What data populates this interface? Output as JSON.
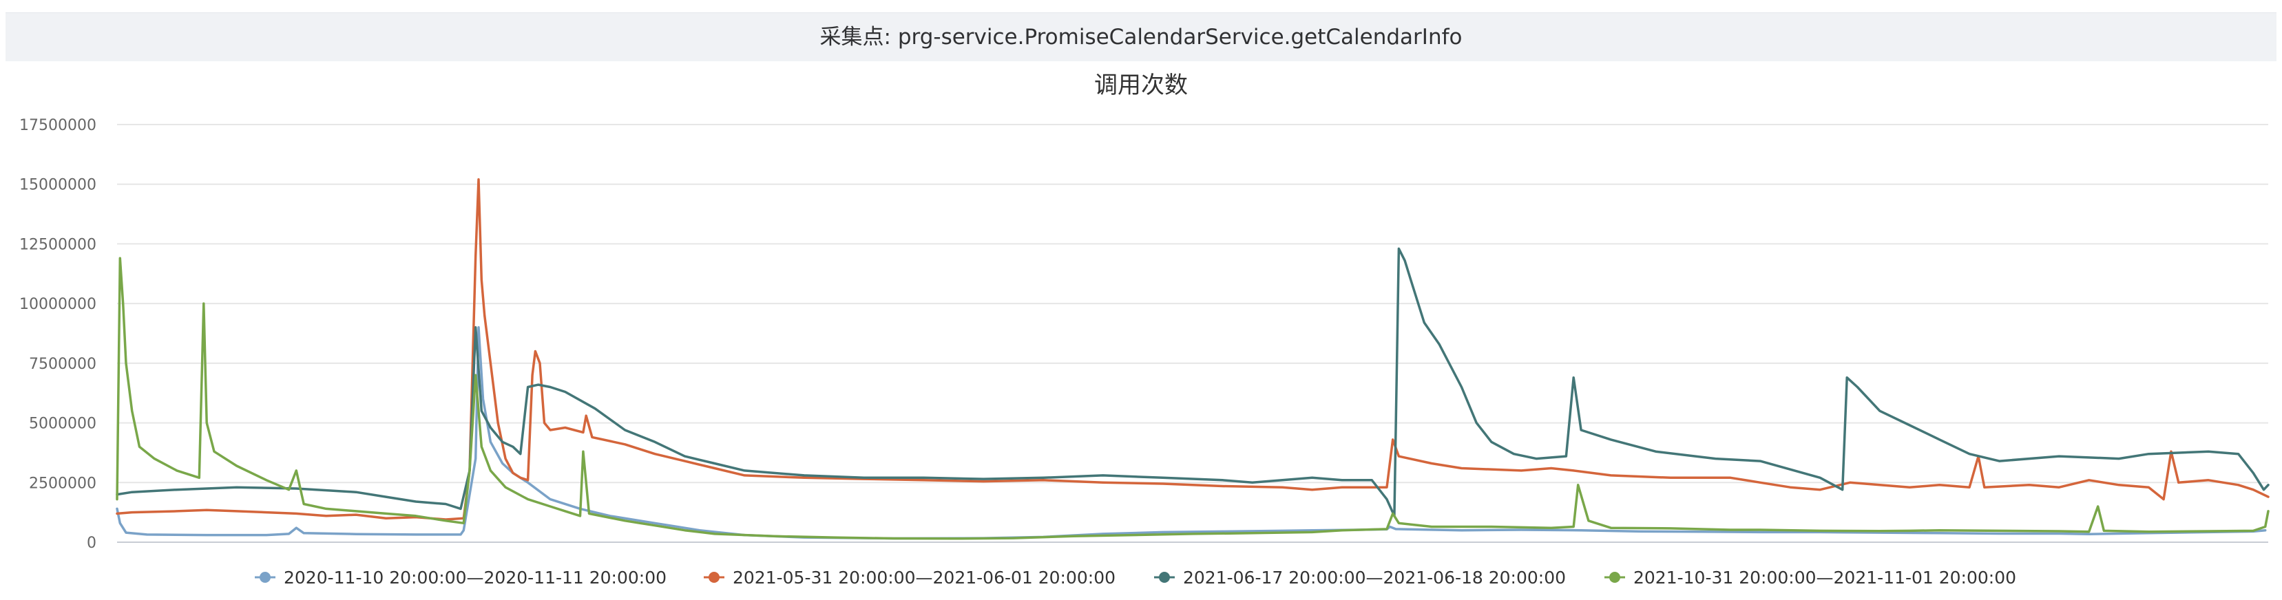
{
  "header": {
    "label": "采集点:",
    "value": "prg-service.PromiseCalendarService.getCalendarInfo"
  },
  "chart_data": {
    "type": "line",
    "title": "调用次数",
    "xlabel": "",
    "ylabel": "",
    "ylim": [
      0,
      17500000
    ],
    "yticks": [
      0,
      2500000,
      5000000,
      7500000,
      10000000,
      12500000,
      15000000,
      17500000
    ],
    "ytick_labels": [
      "0",
      "2500000",
      "5000000",
      "7500000",
      "10000000",
      "12500000",
      "15000000",
      "17500000"
    ],
    "grid": true,
    "legend_position": "bottom",
    "x_domain": [
      0,
      1440
    ],
    "series": [
      {
        "name": "2020-11-10 20:00:00—2020-11-11 20:00:00",
        "color": "#7aa2c8",
        "points": [
          [
            0,
            1400000
          ],
          [
            2,
            800000
          ],
          [
            6,
            400000
          ],
          [
            20,
            320000
          ],
          [
            60,
            300000
          ],
          [
            100,
            300000
          ],
          [
            115,
            350000
          ],
          [
            120,
            600000
          ],
          [
            125,
            380000
          ],
          [
            160,
            340000
          ],
          [
            200,
            320000
          ],
          [
            230,
            320000
          ],
          [
            232,
            500000
          ],
          [
            240,
            3500000
          ],
          [
            242,
            9000000
          ],
          [
            245,
            6000000
          ],
          [
            250,
            4200000
          ],
          [
            258,
            3300000
          ],
          [
            265,
            2900000
          ],
          [
            275,
            2500000
          ],
          [
            290,
            1800000
          ],
          [
            310,
            1400000
          ],
          [
            330,
            1100000
          ],
          [
            360,
            800000
          ],
          [
            390,
            500000
          ],
          [
            420,
            300000
          ],
          [
            460,
            200000
          ],
          [
            520,
            160000
          ],
          [
            580,
            170000
          ],
          [
            620,
            220000
          ],
          [
            660,
            350000
          ],
          [
            700,
            420000
          ],
          [
            740,
            450000
          ],
          [
            780,
            480000
          ],
          [
            800,
            500000
          ],
          [
            830,
            520000
          ],
          [
            850,
            540000
          ],
          [
            852,
            650000
          ],
          [
            856,
            550000
          ],
          [
            900,
            500000
          ],
          [
            940,
            520000
          ],
          [
            980,
            500000
          ],
          [
            1020,
            450000
          ],
          [
            1060,
            440000
          ],
          [
            1100,
            420000
          ],
          [
            1140,
            420000
          ],
          [
            1180,
            400000
          ],
          [
            1220,
            380000
          ],
          [
            1260,
            360000
          ],
          [
            1300,
            360000
          ],
          [
            1320,
            340000
          ],
          [
            1360,
            380000
          ],
          [
            1400,
            420000
          ],
          [
            1430,
            450000
          ],
          [
            1438,
            500000
          ]
        ]
      },
      {
        "name": "2021-05-31 20:00:00—2021-06-01 20:00:00",
        "color": "#d4653b",
        "points": [
          [
            0,
            1200000
          ],
          [
            10,
            1250000
          ],
          [
            40,
            1300000
          ],
          [
            60,
            1350000
          ],
          [
            80,
            1300000
          ],
          [
            100,
            1250000
          ],
          [
            120,
            1200000
          ],
          [
            140,
            1100000
          ],
          [
            160,
            1150000
          ],
          [
            180,
            1000000
          ],
          [
            200,
            1050000
          ],
          [
            220,
            950000
          ],
          [
            232,
            1000000
          ],
          [
            236,
            3000000
          ],
          [
            240,
            12000000
          ],
          [
            242,
            15200000
          ],
          [
            244,
            11000000
          ],
          [
            246,
            9500000
          ],
          [
            250,
            7500000
          ],
          [
            255,
            5000000
          ],
          [
            260,
            3500000
          ],
          [
            265,
            2900000
          ],
          [
            270,
            2700000
          ],
          [
            275,
            2600000
          ],
          [
            278,
            7000000
          ],
          [
            280,
            8000000
          ],
          [
            283,
            7500000
          ],
          [
            286,
            5000000
          ],
          [
            290,
            4700000
          ],
          [
            300,
            4800000
          ],
          [
            312,
            4600000
          ],
          [
            314,
            5300000
          ],
          [
            318,
            4400000
          ],
          [
            340,
            4100000
          ],
          [
            360,
            3700000
          ],
          [
            380,
            3400000
          ],
          [
            400,
            3100000
          ],
          [
            420,
            2800000
          ],
          [
            460,
            2700000
          ],
          [
            500,
            2650000
          ],
          [
            540,
            2600000
          ],
          [
            580,
            2550000
          ],
          [
            620,
            2600000
          ],
          [
            660,
            2500000
          ],
          [
            700,
            2450000
          ],
          [
            740,
            2350000
          ],
          [
            780,
            2300000
          ],
          [
            800,
            2200000
          ],
          [
            820,
            2300000
          ],
          [
            850,
            2300000
          ],
          [
            854,
            4300000
          ],
          [
            858,
            3600000
          ],
          [
            880,
            3300000
          ],
          [
            900,
            3100000
          ],
          [
            940,
            3000000
          ],
          [
            960,
            3100000
          ],
          [
            975,
            3000000
          ],
          [
            1000,
            2800000
          ],
          [
            1040,
            2700000
          ],
          [
            1080,
            2700000
          ],
          [
            1100,
            2500000
          ],
          [
            1120,
            2300000
          ],
          [
            1140,
            2200000
          ],
          [
            1160,
            2500000
          ],
          [
            1200,
            2300000
          ],
          [
            1220,
            2400000
          ],
          [
            1240,
            2300000
          ],
          [
            1246,
            3600000
          ],
          [
            1250,
            2300000
          ],
          [
            1280,
            2400000
          ],
          [
            1300,
            2300000
          ],
          [
            1320,
            2600000
          ],
          [
            1340,
            2400000
          ],
          [
            1360,
            2300000
          ],
          [
            1370,
            1800000
          ],
          [
            1375,
            3800000
          ],
          [
            1380,
            2500000
          ],
          [
            1400,
            2600000
          ],
          [
            1420,
            2400000
          ],
          [
            1430,
            2200000
          ],
          [
            1440,
            1900000
          ]
        ]
      },
      {
        "name": "2021-06-17 20:00:00—2021-06-18 20:00:00",
        "color": "#437677",
        "points": [
          [
            0,
            2000000
          ],
          [
            10,
            2100000
          ],
          [
            40,
            2200000
          ],
          [
            80,
            2300000
          ],
          [
            120,
            2250000
          ],
          [
            160,
            2100000
          ],
          [
            180,
            1900000
          ],
          [
            200,
            1700000
          ],
          [
            220,
            1600000
          ],
          [
            230,
            1400000
          ],
          [
            236,
            3000000
          ],
          [
            240,
            9000000
          ],
          [
            244,
            5500000
          ],
          [
            250,
            4800000
          ],
          [
            258,
            4200000
          ],
          [
            265,
            4000000
          ],
          [
            270,
            3700000
          ],
          [
            275,
            6500000
          ],
          [
            282,
            6600000
          ],
          [
            290,
            6500000
          ],
          [
            300,
            6300000
          ],
          [
            320,
            5600000
          ],
          [
            340,
            4700000
          ],
          [
            360,
            4200000
          ],
          [
            380,
            3600000
          ],
          [
            400,
            3300000
          ],
          [
            420,
            3000000
          ],
          [
            460,
            2800000
          ],
          [
            500,
            2700000
          ],
          [
            540,
            2700000
          ],
          [
            580,
            2650000
          ],
          [
            620,
            2700000
          ],
          [
            660,
            2800000
          ],
          [
            700,
            2700000
          ],
          [
            740,
            2600000
          ],
          [
            760,
            2500000
          ],
          [
            780,
            2600000
          ],
          [
            800,
            2700000
          ],
          [
            820,
            2600000
          ],
          [
            840,
            2600000
          ],
          [
            850,
            1800000
          ],
          [
            855,
            1100000
          ],
          [
            858,
            12300000
          ],
          [
            862,
            11800000
          ],
          [
            866,
            11000000
          ],
          [
            875,
            9200000
          ],
          [
            885,
            8300000
          ],
          [
            900,
            6500000
          ],
          [
            910,
            5000000
          ],
          [
            920,
            4200000
          ],
          [
            935,
            3700000
          ],
          [
            950,
            3500000
          ],
          [
            970,
            3600000
          ],
          [
            975,
            6900000
          ],
          [
            980,
            4700000
          ],
          [
            1000,
            4300000
          ],
          [
            1030,
            3800000
          ],
          [
            1070,
            3500000
          ],
          [
            1100,
            3400000
          ],
          [
            1140,
            2700000
          ],
          [
            1155,
            2200000
          ],
          [
            1158,
            6900000
          ],
          [
            1165,
            6500000
          ],
          [
            1180,
            5500000
          ],
          [
            1200,
            4900000
          ],
          [
            1220,
            4300000
          ],
          [
            1240,
            3700000
          ],
          [
            1260,
            3400000
          ],
          [
            1300,
            3600000
          ],
          [
            1340,
            3500000
          ],
          [
            1360,
            3700000
          ],
          [
            1400,
            3800000
          ],
          [
            1420,
            3700000
          ],
          [
            1430,
            2900000
          ],
          [
            1437,
            2200000
          ],
          [
            1440,
            2400000
          ]
        ]
      },
      {
        "name": "2021-10-31 20:00:00—2021-11-01 20:00:00",
        "color": "#79a749",
        "points": [
          [
            0,
            1800000
          ],
          [
            2,
            11900000
          ],
          [
            4,
            10000000
          ],
          [
            6,
            7500000
          ],
          [
            10,
            5500000
          ],
          [
            15,
            4000000
          ],
          [
            25,
            3500000
          ],
          [
            40,
            3000000
          ],
          [
            55,
            2700000
          ],
          [
            58,
            10000000
          ],
          [
            60,
            5000000
          ],
          [
            65,
            3800000
          ],
          [
            80,
            3200000
          ],
          [
            100,
            2600000
          ],
          [
            115,
            2200000
          ],
          [
            120,
            3000000
          ],
          [
            125,
            1600000
          ],
          [
            140,
            1400000
          ],
          [
            160,
            1300000
          ],
          [
            180,
            1200000
          ],
          [
            200,
            1100000
          ],
          [
            220,
            900000
          ],
          [
            232,
            800000
          ],
          [
            236,
            3000000
          ],
          [
            240,
            7000000
          ],
          [
            244,
            4000000
          ],
          [
            250,
            3000000
          ],
          [
            260,
            2300000
          ],
          [
            275,
            1800000
          ],
          [
            290,
            1500000
          ],
          [
            300,
            1300000
          ],
          [
            310,
            1100000
          ],
          [
            312,
            3800000
          ],
          [
            316,
            1200000
          ],
          [
            340,
            900000
          ],
          [
            360,
            700000
          ],
          [
            380,
            500000
          ],
          [
            400,
            350000
          ],
          [
            440,
            250000
          ],
          [
            480,
            200000
          ],
          [
            520,
            160000
          ],
          [
            560,
            150000
          ],
          [
            600,
            170000
          ],
          [
            640,
            250000
          ],
          [
            680,
            300000
          ],
          [
            720,
            350000
          ],
          [
            760,
            380000
          ],
          [
            800,
            420000
          ],
          [
            820,
            500000
          ],
          [
            850,
            550000
          ],
          [
            854,
            1200000
          ],
          [
            858,
            800000
          ],
          [
            880,
            650000
          ],
          [
            920,
            650000
          ],
          [
            960,
            600000
          ],
          [
            975,
            650000
          ],
          [
            978,
            2400000
          ],
          [
            985,
            900000
          ],
          [
            1000,
            600000
          ],
          [
            1040,
            580000
          ],
          [
            1080,
            520000
          ],
          [
            1100,
            520000
          ],
          [
            1140,
            480000
          ],
          [
            1180,
            470000
          ],
          [
            1200,
            480000
          ],
          [
            1220,
            500000
          ],
          [
            1260,
            480000
          ],
          [
            1300,
            460000
          ],
          [
            1320,
            440000
          ],
          [
            1326,
            1500000
          ],
          [
            1330,
            480000
          ],
          [
            1360,
            440000
          ],
          [
            1400,
            460000
          ],
          [
            1430,
            480000
          ],
          [
            1438,
            650000
          ],
          [
            1440,
            1300000
          ]
        ]
      }
    ]
  }
}
